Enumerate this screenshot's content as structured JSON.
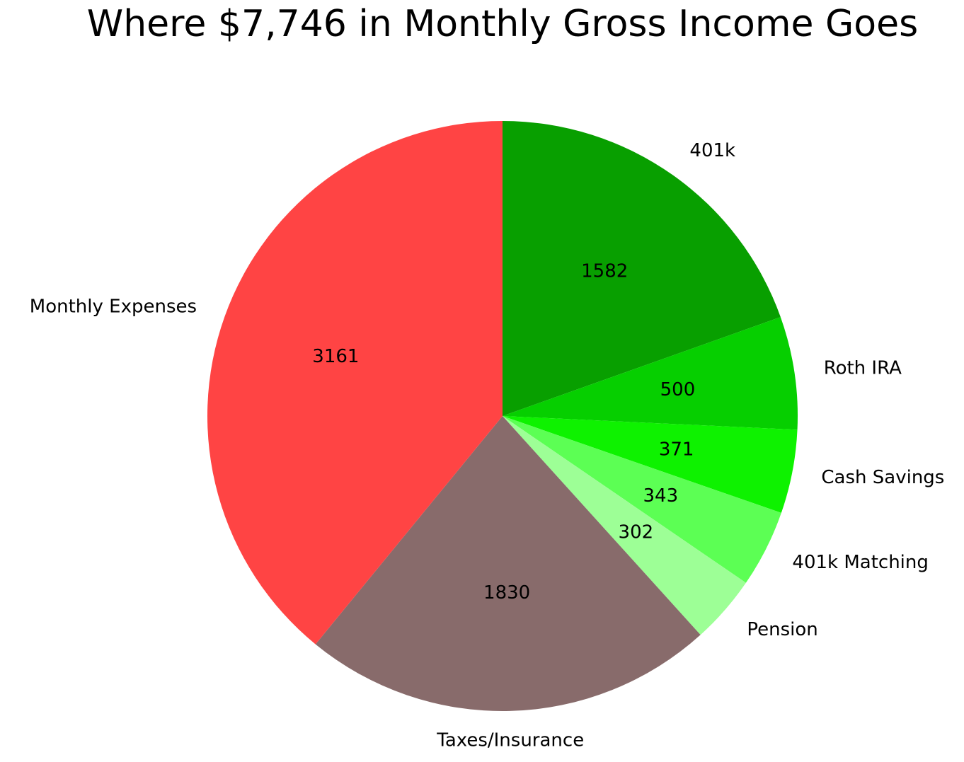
{
  "chart_data": {
    "type": "pie",
    "title": "Where $7,746 in Monthly Gross Income Goes",
    "direction": "clockwise",
    "start_angle": "top",
    "slices": [
      {
        "label": "401k",
        "value": 1582,
        "color": "#089f00"
      },
      {
        "label": "Roth IRA",
        "value": 500,
        "color": "#06cf00"
      },
      {
        "label": "Cash Savings",
        "value": 371,
        "color": "#0ef200"
      },
      {
        "label": "401k Matching",
        "value": 343,
        "color": "#5cff54"
      },
      {
        "label": "Pension",
        "value": 302,
        "color": "#9dff96"
      },
      {
        "label": "Taxes/Insurance",
        "value": 1830,
        "color": "#886b6b"
      },
      {
        "label": "Monthly Expenses",
        "value": 3161,
        "color": "#ff4444"
      }
    ]
  }
}
